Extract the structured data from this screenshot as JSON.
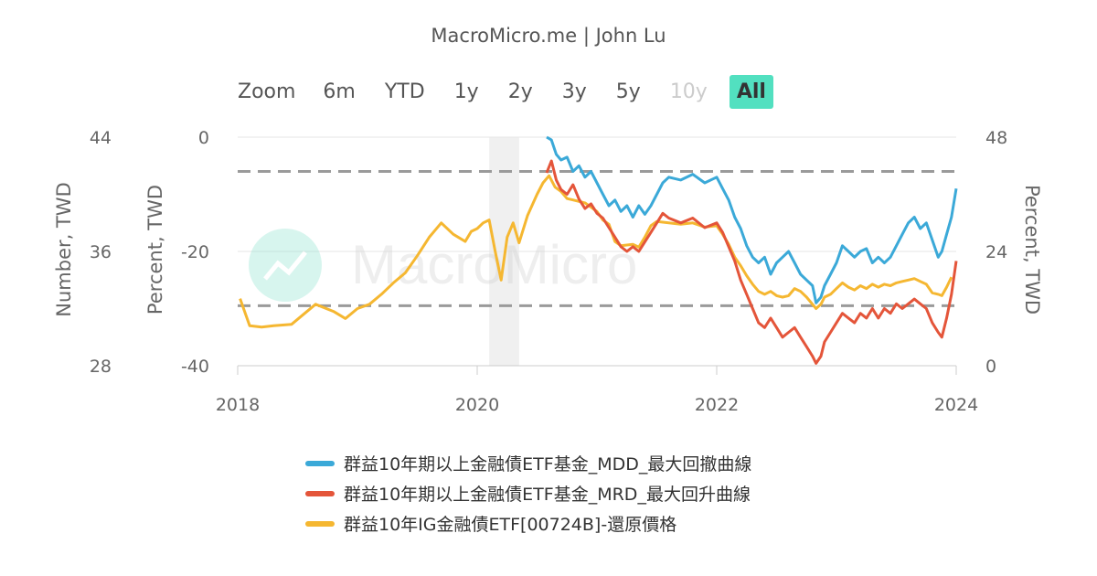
{
  "header": {
    "credit": "MacroMicro.me | John Lu"
  },
  "watermark": {
    "text": "MacroMicro"
  },
  "zoom": {
    "label": "Zoom",
    "buttons": [
      {
        "label": "6m",
        "state": "normal"
      },
      {
        "label": "YTD",
        "state": "normal"
      },
      {
        "label": "1y",
        "state": "normal"
      },
      {
        "label": "2y",
        "state": "normal"
      },
      {
        "label": "3y",
        "state": "normal"
      },
      {
        "label": "5y",
        "state": "normal"
      },
      {
        "label": "10y",
        "state": "disabled"
      },
      {
        "label": "All",
        "state": "active"
      }
    ]
  },
  "chart_data": {
    "type": "line",
    "x_axis": {
      "ticks": [
        "2018",
        "2020",
        "2022",
        "2024"
      ],
      "range": [
        2018,
        2024
      ]
    },
    "y_axes": [
      {
        "id": "number",
        "title": "Number, TWD",
        "side": "left-outer",
        "range": [
          28,
          44
        ],
        "ticks": [
          "44",
          "36",
          "28"
        ]
      },
      {
        "id": "percent",
        "title": "Percent, TWD",
        "side": "left-inner",
        "range": [
          -40,
          0
        ],
        "ticks": [
          "0",
          "-20",
          "-40"
        ]
      },
      {
        "id": "right",
        "title": "Percent, TWD",
        "side": "right",
        "range": [
          0,
          48
        ],
        "ticks": [
          "48",
          "24",
          "0"
        ]
      }
    ],
    "reference_lines": [
      {
        "axis": "right",
        "value": 40.8,
        "style": "dashed"
      },
      {
        "axis": "right",
        "value": 12.6,
        "style": "dashed"
      }
    ],
    "shaded_band": {
      "x_from": 2020.1,
      "x_to": 2020.35
    },
    "colors": {
      "mdd": "#3ba9d8",
      "mrd": "#e4553a",
      "price": "#f5b731"
    },
    "series": [
      {
        "name": "群益10年期以上金融債ETF基金_MDD_最大回撤曲線",
        "axis": "percent",
        "color": "#3ba9d8",
        "points": [
          [
            2020.58,
            0
          ],
          [
            2020.62,
            -0.5
          ],
          [
            2020.66,
            -3
          ],
          [
            2020.7,
            -4
          ],
          [
            2020.75,
            -3.5
          ],
          [
            2020.8,
            -6
          ],
          [
            2020.85,
            -5
          ],
          [
            2020.9,
            -7
          ],
          [
            2020.95,
            -6
          ],
          [
            2021.0,
            -8
          ],
          [
            2021.05,
            -10
          ],
          [
            2021.1,
            -12
          ],
          [
            2021.15,
            -11
          ],
          [
            2021.2,
            -13
          ],
          [
            2021.25,
            -12
          ],
          [
            2021.3,
            -14
          ],
          [
            2021.35,
            -12
          ],
          [
            2021.4,
            -13.5
          ],
          [
            2021.45,
            -12
          ],
          [
            2021.5,
            -10
          ],
          [
            2021.55,
            -8
          ],
          [
            2021.6,
            -7
          ],
          [
            2021.7,
            -7.5
          ],
          [
            2021.8,
            -6.5
          ],
          [
            2021.9,
            -8
          ],
          [
            2022.0,
            -7
          ],
          [
            2022.05,
            -9
          ],
          [
            2022.1,
            -11
          ],
          [
            2022.15,
            -14
          ],
          [
            2022.2,
            -16
          ],
          [
            2022.25,
            -19
          ],
          [
            2022.3,
            -21
          ],
          [
            2022.35,
            -22
          ],
          [
            2022.4,
            -21
          ],
          [
            2022.45,
            -24
          ],
          [
            2022.5,
            -22
          ],
          [
            2022.55,
            -21
          ],
          [
            2022.6,
            -20
          ],
          [
            2022.65,
            -22
          ],
          [
            2022.7,
            -24
          ],
          [
            2022.75,
            -25
          ],
          [
            2022.8,
            -26
          ],
          [
            2022.83,
            -29
          ],
          [
            2022.87,
            -28
          ],
          [
            2022.9,
            -26
          ],
          [
            2022.95,
            -24
          ],
          [
            2023.0,
            -22
          ],
          [
            2023.05,
            -19
          ],
          [
            2023.1,
            -20
          ],
          [
            2023.15,
            -21
          ],
          [
            2023.2,
            -20
          ],
          [
            2023.25,
            -19.5
          ],
          [
            2023.3,
            -22
          ],
          [
            2023.35,
            -21
          ],
          [
            2023.4,
            -22
          ],
          [
            2023.45,
            -21
          ],
          [
            2023.5,
            -19
          ],
          [
            2023.55,
            -17
          ],
          [
            2023.6,
            -15
          ],
          [
            2023.65,
            -14
          ],
          [
            2023.7,
            -16
          ],
          [
            2023.75,
            -15
          ],
          [
            2023.8,
            -18
          ],
          [
            2023.85,
            -21
          ],
          [
            2023.88,
            -20
          ],
          [
            2023.92,
            -17
          ],
          [
            2023.96,
            -14
          ],
          [
            2024.0,
            -9
          ]
        ]
      },
      {
        "name": "群益10年期以上金融債ETF基金_MRD_最大回升曲線",
        "axis": "right",
        "color": "#e4553a",
        "points": [
          [
            2020.58,
            40.5
          ],
          [
            2020.62,
            43
          ],
          [
            2020.66,
            39
          ],
          [
            2020.7,
            37
          ],
          [
            2020.75,
            36
          ],
          [
            2020.8,
            38
          ],
          [
            2020.85,
            35
          ],
          [
            2020.9,
            33
          ],
          [
            2020.95,
            34
          ],
          [
            2021.0,
            32
          ],
          [
            2021.05,
            31
          ],
          [
            2021.1,
            29
          ],
          [
            2021.15,
            27
          ],
          [
            2021.2,
            25
          ],
          [
            2021.25,
            24
          ],
          [
            2021.3,
            25
          ],
          [
            2021.35,
            24
          ],
          [
            2021.4,
            26
          ],
          [
            2021.45,
            28
          ],
          [
            2021.5,
            30
          ],
          [
            2021.55,
            32
          ],
          [
            2021.6,
            31
          ],
          [
            2021.7,
            30
          ],
          [
            2021.8,
            31
          ],
          [
            2021.9,
            29
          ],
          [
            2022.0,
            30
          ],
          [
            2022.05,
            28
          ],
          [
            2022.1,
            25
          ],
          [
            2022.15,
            22
          ],
          [
            2022.2,
            18
          ],
          [
            2022.25,
            15
          ],
          [
            2022.3,
            12
          ],
          [
            2022.35,
            9
          ],
          [
            2022.4,
            8
          ],
          [
            2022.45,
            10
          ],
          [
            2022.5,
            8
          ],
          [
            2022.55,
            6
          ],
          [
            2022.6,
            7
          ],
          [
            2022.65,
            8
          ],
          [
            2022.7,
            6
          ],
          [
            2022.75,
            4
          ],
          [
            2022.8,
            2
          ],
          [
            2022.83,
            0.5
          ],
          [
            2022.87,
            2
          ],
          [
            2022.9,
            5
          ],
          [
            2022.95,
            7
          ],
          [
            2023.0,
            9
          ],
          [
            2023.05,
            11
          ],
          [
            2023.1,
            10
          ],
          [
            2023.15,
            9
          ],
          [
            2023.2,
            11
          ],
          [
            2023.25,
            10
          ],
          [
            2023.3,
            12
          ],
          [
            2023.35,
            10
          ],
          [
            2023.4,
            12
          ],
          [
            2023.45,
            11
          ],
          [
            2023.5,
            13
          ],
          [
            2023.55,
            12
          ],
          [
            2023.6,
            13
          ],
          [
            2023.65,
            14
          ],
          [
            2023.7,
            13
          ],
          [
            2023.75,
            12
          ],
          [
            2023.8,
            9
          ],
          [
            2023.85,
            7
          ],
          [
            2023.88,
            6
          ],
          [
            2023.92,
            10
          ],
          [
            2023.96,
            15
          ],
          [
            2024.0,
            22
          ]
        ]
      },
      {
        "name": "群益10年IG金融債ETF[00724B]-還原價格",
        "axis": "number",
        "color": "#f5b731",
        "points": [
          [
            2018.02,
            32.7
          ],
          [
            2018.1,
            30.8
          ],
          [
            2018.2,
            30.7
          ],
          [
            2018.3,
            30.8
          ],
          [
            2018.45,
            30.9
          ],
          [
            2018.55,
            31.6
          ],
          [
            2018.65,
            32.3
          ],
          [
            2018.8,
            31.8
          ],
          [
            2018.9,
            31.3
          ],
          [
            2019.0,
            32.0
          ],
          [
            2019.1,
            32.3
          ],
          [
            2019.2,
            33.0
          ],
          [
            2019.3,
            33.8
          ],
          [
            2019.4,
            34.5
          ],
          [
            2019.5,
            35.7
          ],
          [
            2019.6,
            37.0
          ],
          [
            2019.7,
            38.0
          ],
          [
            2019.8,
            37.2
          ],
          [
            2019.9,
            36.7
          ],
          [
            2019.95,
            37.4
          ],
          [
            2020.0,
            37.6
          ],
          [
            2020.05,
            38.0
          ],
          [
            2020.1,
            38.2
          ],
          [
            2020.15,
            36.0
          ],
          [
            2020.2,
            34.0
          ],
          [
            2020.25,
            37.0
          ],
          [
            2020.3,
            38.0
          ],
          [
            2020.35,
            36.6
          ],
          [
            2020.42,
            38.5
          ],
          [
            2020.5,
            40.0
          ],
          [
            2020.55,
            40.8
          ],
          [
            2020.6,
            41.3
          ],
          [
            2020.65,
            40.5
          ],
          [
            2020.7,
            40.2
          ],
          [
            2020.75,
            39.7
          ],
          [
            2020.8,
            39.6
          ],
          [
            2020.85,
            39.5
          ],
          [
            2020.9,
            39.4
          ],
          [
            2021.0,
            38.8
          ],
          [
            2021.05,
            38.2
          ],
          [
            2021.1,
            37.9
          ],
          [
            2021.15,
            36.7
          ],
          [
            2021.2,
            36.4
          ],
          [
            2021.3,
            36.5
          ],
          [
            2021.35,
            36.3
          ],
          [
            2021.4,
            37.0
          ],
          [
            2021.45,
            37.8
          ],
          [
            2021.5,
            38.1
          ],
          [
            2021.6,
            38.0
          ],
          [
            2021.7,
            37.9
          ],
          [
            2021.8,
            38.0
          ],
          [
            2021.9,
            37.7
          ],
          [
            2022.0,
            37.8
          ],
          [
            2022.05,
            37.2
          ],
          [
            2022.1,
            36.5
          ],
          [
            2022.15,
            35.6
          ],
          [
            2022.2,
            35.0
          ],
          [
            2022.25,
            34.3
          ],
          [
            2022.3,
            33.7
          ],
          [
            2022.35,
            33.2
          ],
          [
            2022.4,
            33.0
          ],
          [
            2022.45,
            33.2
          ],
          [
            2022.5,
            32.9
          ],
          [
            2022.55,
            32.8
          ],
          [
            2022.6,
            32.9
          ],
          [
            2022.65,
            33.4
          ],
          [
            2022.7,
            33.2
          ],
          [
            2022.75,
            32.8
          ],
          [
            2022.8,
            32.3
          ],
          [
            2022.83,
            32.0
          ],
          [
            2022.87,
            32.3
          ],
          [
            2022.9,
            32.8
          ],
          [
            2022.95,
            33.0
          ],
          [
            2023.0,
            33.4
          ],
          [
            2023.05,
            33.8
          ],
          [
            2023.1,
            33.5
          ],
          [
            2023.15,
            33.3
          ],
          [
            2023.2,
            33.6
          ],
          [
            2023.25,
            33.4
          ],
          [
            2023.3,
            33.7
          ],
          [
            2023.35,
            33.5
          ],
          [
            2023.4,
            33.7
          ],
          [
            2023.45,
            33.6
          ],
          [
            2023.5,
            33.8
          ],
          [
            2023.55,
            33.9
          ],
          [
            2023.6,
            34.0
          ],
          [
            2023.65,
            34.1
          ],
          [
            2023.7,
            33.9
          ],
          [
            2023.75,
            33.7
          ],
          [
            2023.8,
            33.1
          ],
          [
            2023.85,
            33.0
          ],
          [
            2023.88,
            32.9
          ],
          [
            2023.92,
            33.5
          ],
          [
            2023.96,
            34.2
          ]
        ]
      }
    ]
  }
}
